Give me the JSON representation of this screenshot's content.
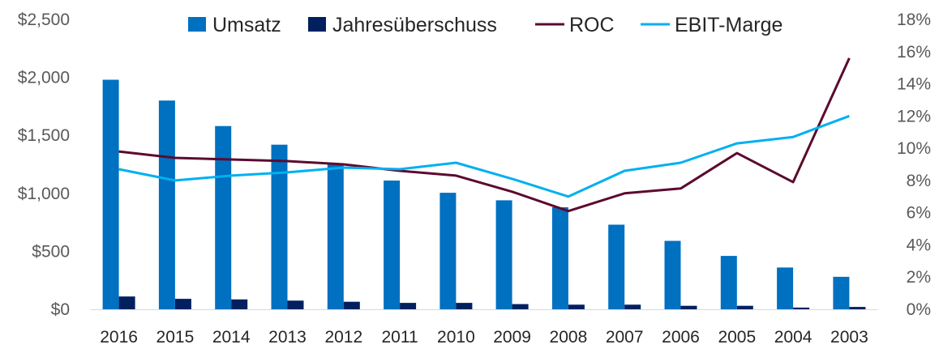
{
  "chart_data": {
    "type": "bar",
    "categories": [
      "2016",
      "2015",
      "2014",
      "2013",
      "2012",
      "2011",
      "2010",
      "2009",
      "2008",
      "2007",
      "2006",
      "2005",
      "2004",
      "2003"
    ],
    "series": [
      {
        "name": "Umsatz",
        "kind": "bar",
        "axis": "left",
        "color": "#0070C0",
        "values": [
          1980,
          1800,
          1580,
          1420,
          1260,
          1110,
          1005,
          940,
          880,
          730,
          590,
          460,
          360,
          280
        ]
      },
      {
        "name": "Jahresüberschuss",
        "kind": "bar",
        "axis": "left",
        "color": "#002060",
        "values": [
          110,
          90,
          85,
          75,
          65,
          55,
          55,
          45,
          40,
          40,
          30,
          30,
          15,
          20
        ]
      },
      {
        "name": "ROC",
        "kind": "line",
        "axis": "right",
        "color": "#5C0A2E",
        "values": [
          9.8,
          9.4,
          9.3,
          9.2,
          9.0,
          8.6,
          8.3,
          7.3,
          6.1,
          7.2,
          7.5,
          9.7,
          7.9,
          15.6
        ]
      },
      {
        "name": "EBIT-Marge",
        "kind": "line",
        "axis": "right",
        "color": "#00B0F0",
        "values": [
          8.7,
          8.0,
          8.3,
          8.5,
          8.8,
          8.7,
          9.1,
          8.1,
          7.0,
          8.6,
          9.1,
          10.3,
          10.7,
          12.0
        ]
      }
    ],
    "ylim_left": [
      0,
      2500
    ],
    "yticks_left": [
      "$0",
      "$500",
      "$1,000",
      "$1,500",
      "$2,000",
      "$2,500"
    ],
    "ylim_right": [
      0,
      18
    ],
    "yticks_right": [
      "0%",
      "2%",
      "4%",
      "6%",
      "8%",
      "10%",
      "12%",
      "14%",
      "16%",
      "18%"
    ],
    "legend_position": "top",
    "grid": false
  }
}
